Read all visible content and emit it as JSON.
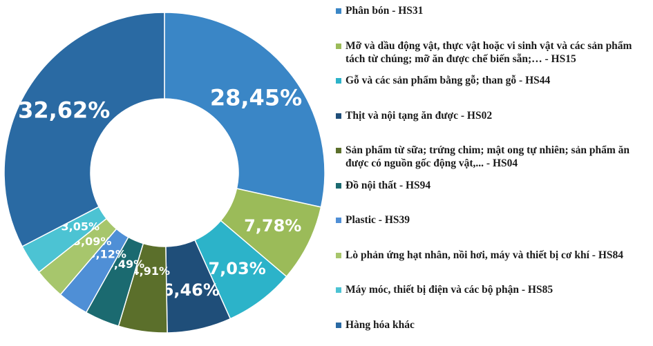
{
  "chart_data": {
    "type": "pie",
    "categories": [
      "Phân bón - HS31",
      "Mỡ và dầu động vật, thực vật hoặc vi sinh vật và các sản phẩm tách từ chúng; mỡ ăn được chế biến sẵn;… - HS15",
      "Gỗ và các sản phẩm bằng gỗ; than gỗ - HS44",
      "Thịt và nội tạng ăn được - HS02",
      "Sản phẩm từ sữa; trứng chim; mật ong tự nhiên; sản phẩm ăn được có nguồn gốc động vật,... - HS04",
      "Đồ nội thất - HS94",
      "Plastic - HS39",
      "Lò phản ứng hạt nhân, nồi hơi, máy và thiết bị cơ khí - HS84",
      "Máy móc, thiết bị điện và các bộ phận - HS85",
      "Hàng hóa khác"
    ],
    "values": [
      28.45,
      7.78,
      7.03,
      6.46,
      4.91,
      3.49,
      3.12,
      3.09,
      3.05,
      32.62
    ],
    "value_labels": [
      "28,45%",
      "7,78%",
      "7,03%",
      "6,46%",
      "4,91%",
      "3,49%",
      "3,12%",
      "3,09%",
      "3,05%",
      "32,62%"
    ],
    "colors": [
      "#3a86c6",
      "#9bbb59",
      "#2cb3c9",
      "#1f4e79",
      "#5b6f2b",
      "#1b6a70",
      "#4f8fd6",
      "#a7c66c",
      "#4cc3d3",
      "#2a6aa3"
    ],
    "donut": true,
    "legend": "right"
  }
}
